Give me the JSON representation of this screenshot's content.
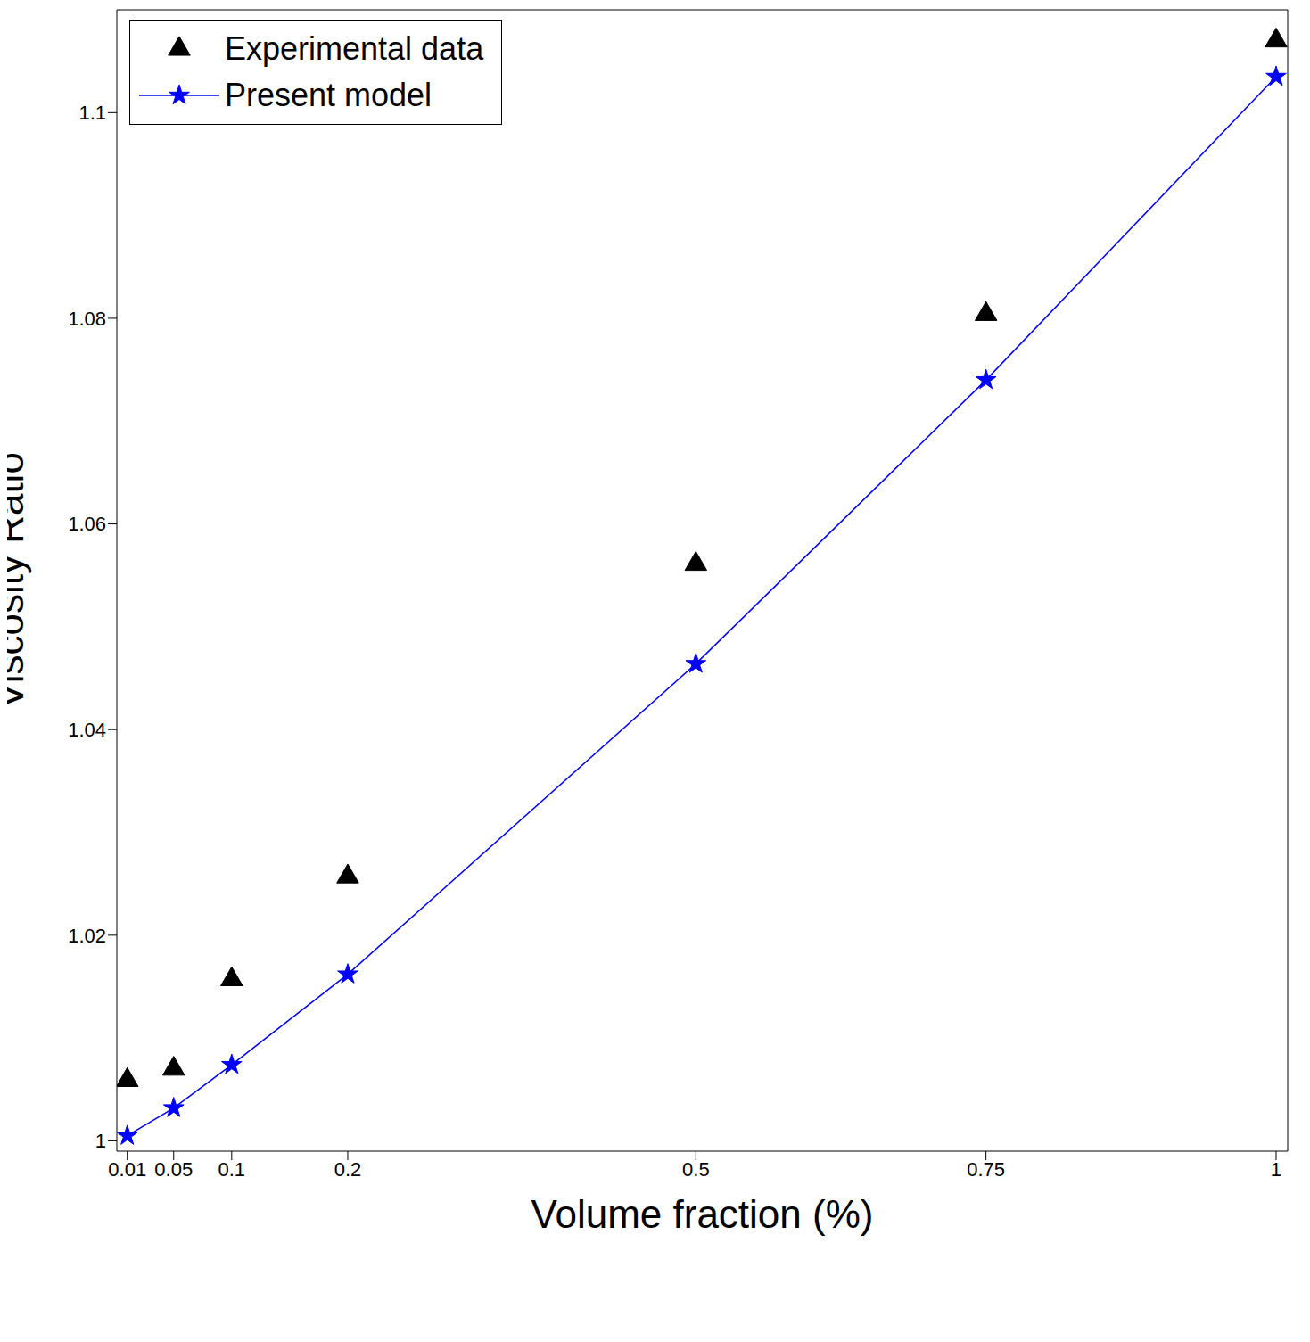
{
  "chart_data": {
    "type": "scatter",
    "x_label": "Volume fraction (%)",
    "y_label": "Viscosity Ratio",
    "x": [
      0.01,
      0.05,
      0.1,
      0.2,
      0.5,
      0.75,
      1
    ],
    "series": [
      {
        "name": "Experimental data",
        "color": "#000000",
        "marker": "triangle",
        "values": [
          1.0059,
          1.007,
          1.0157,
          1.0257,
          1.0561,
          1.0804,
          1.107
        ]
      },
      {
        "name": "Present model",
        "color": "#0000ff",
        "marker": "star",
        "line_style": "solid",
        "type": "line",
        "values": [
          1.0005,
          1.0032,
          1.0074,
          1.0162,
          1.0464,
          1.074,
          1.1035
        ]
      }
    ],
    "xlim": [
      0.001,
      1.01
    ],
    "ylim": [
      0.999,
      1.11
    ],
    "xticks": [
      0.01,
      0.05,
      0.1,
      0.2,
      0.5,
      0.75,
      1
    ],
    "yticks": [
      1,
      1.02,
      1.04,
      1.06,
      1.08,
      1.1
    ],
    "grid": false,
    "legend": "upper left"
  }
}
